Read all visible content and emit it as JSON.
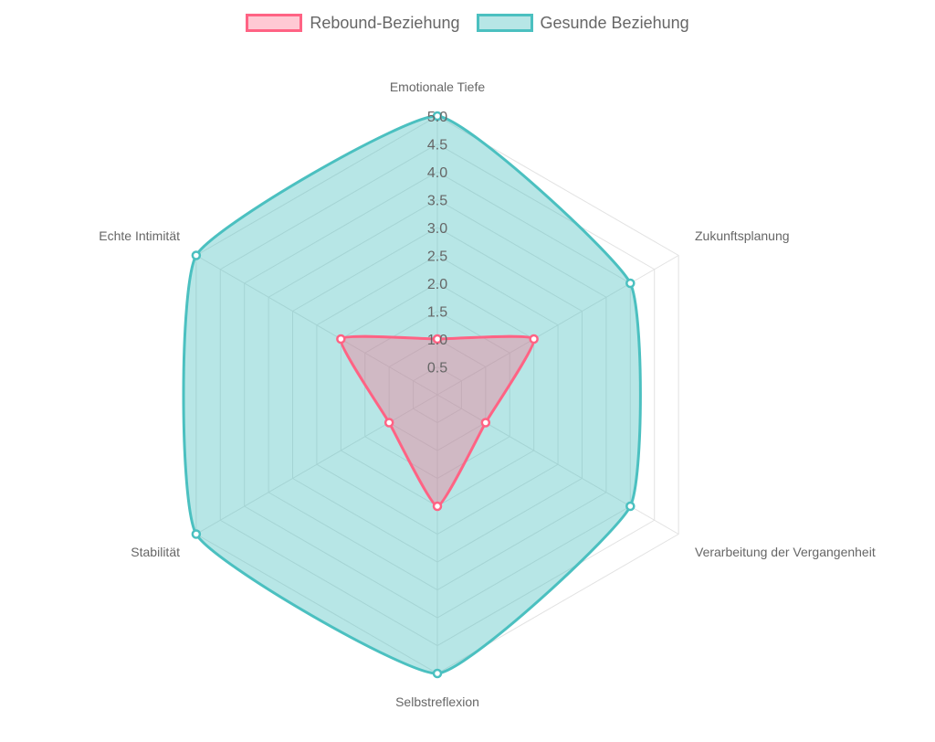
{
  "chart_data": {
    "type": "radar",
    "axes": [
      "Emotionale Tiefe",
      "Zukunftsplanung",
      "Verarbeitung der Vergangenheit",
      "Selbstreflexion",
      "Stabilität",
      "Echte Intimität"
    ],
    "series": [
      {
        "name": "Rebound-Beziehung",
        "values": [
          1,
          2,
          1,
          2,
          1,
          2
        ],
        "border_color": "#ff6384",
        "fill_color": "rgba(255, 99, 132, 0.35)"
      },
      {
        "name": "Gesunde Beziehung",
        "values": [
          5,
          4,
          4,
          5,
          5,
          5
        ],
        "border_color": "#4bc0c0",
        "fill_color": "rgba(75, 192, 192, 0.40)"
      }
    ],
    "r_range": [
      0,
      5
    ],
    "ticks": [
      "0.5",
      "1.0",
      "1.5",
      "2.0",
      "2.5",
      "3.0",
      "3.5",
      "4.0",
      "4.5",
      "5.0"
    ],
    "grid": true,
    "legend_position": "top",
    "line_tension": "smooth"
  }
}
